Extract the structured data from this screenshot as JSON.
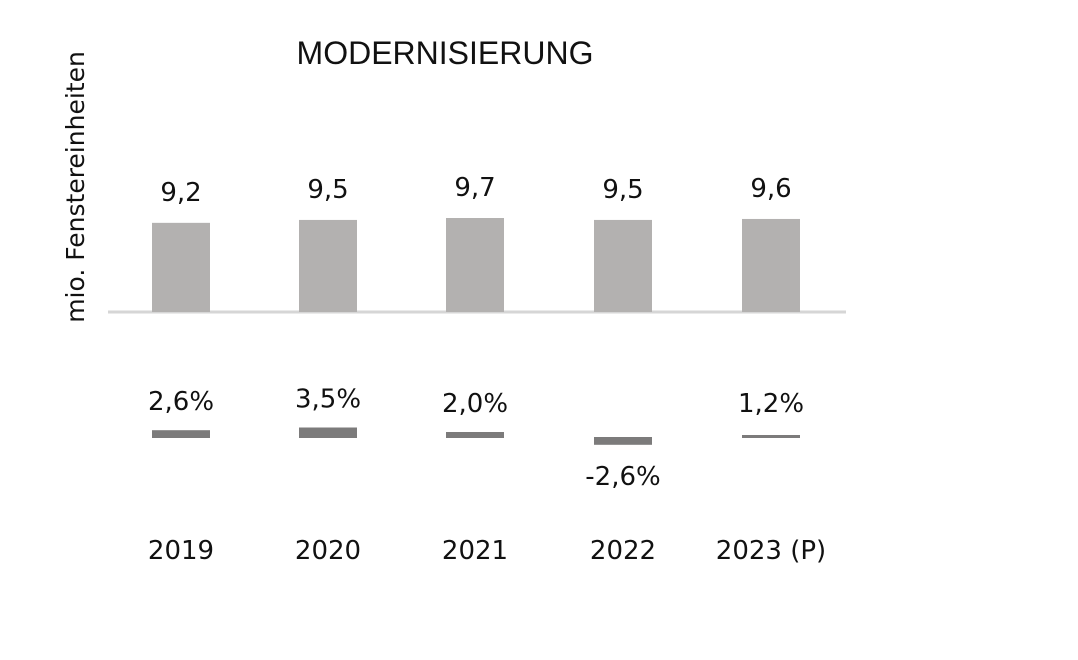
{
  "chart_data": {
    "type": "bar",
    "title": "MODERNISIERUNG",
    "ylabel": "mio. Fenstereinheiten",
    "categories": [
      "2019",
      "2020",
      "2021",
      "2022",
      "2023 (P)"
    ],
    "series": [
      {
        "values": [
          9.2,
          9.5,
          9.7,
          9.5,
          9.6
        ],
        "labels": [
          "9,2",
          "9,5",
          "9,7",
          "9,5",
          "9,6"
        ],
        "color": "#b3b1b0"
      },
      {
        "values": [
          2.6,
          3.5,
          2.0,
          -2.6,
          1.2
        ],
        "labels": [
          "2,6%",
          "3,5%",
          "2,0%",
          "-2,6%",
          "1,2%"
        ],
        "color": "#7c7b7b"
      }
    ],
    "axis_line_color": "#d6d6d6"
  }
}
